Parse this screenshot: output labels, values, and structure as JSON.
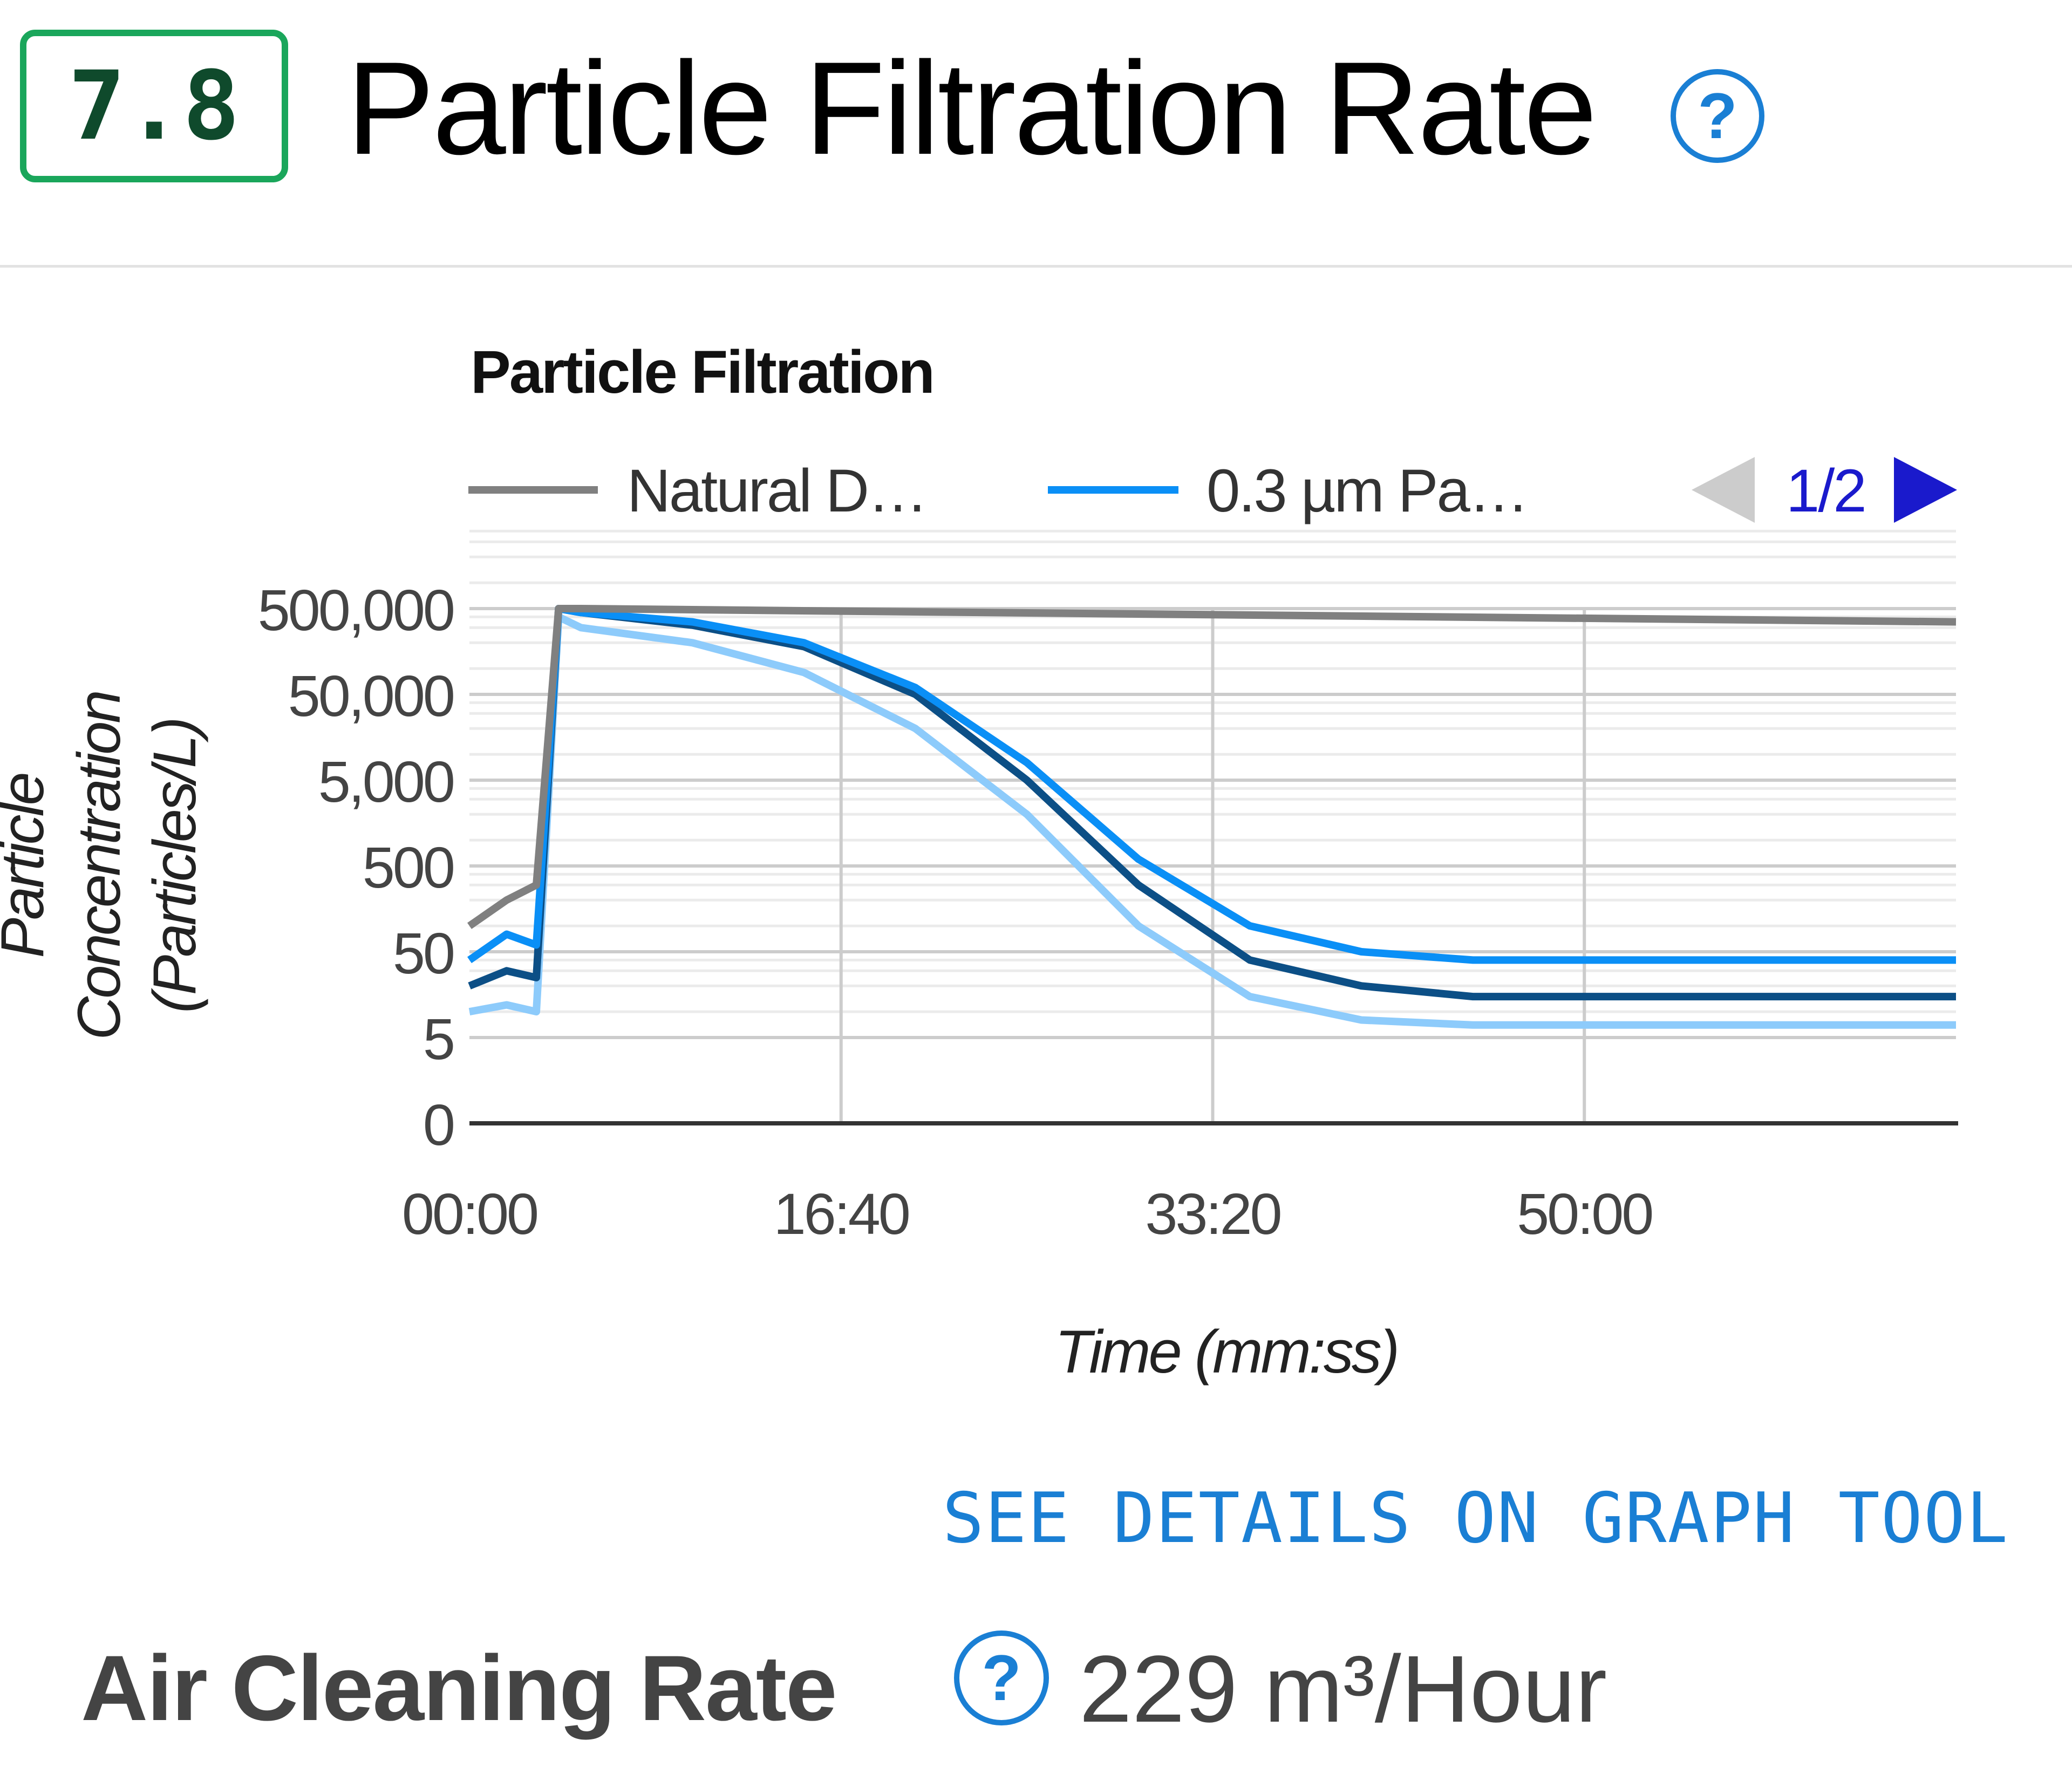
{
  "header": {
    "score": "7.8",
    "title": "Particle Filtration Rate",
    "help_glyph": "?",
    "help_icon": "question-circle-icon"
  },
  "colors": {
    "score_border": "#1aa65b",
    "score_text": "#0f4a2c",
    "accent": "#1a7fd4",
    "natural_decay": "#808080",
    "series_medium": "#0a8ff6",
    "series_dark": "#0c4f86",
    "series_light": "#8dcbfb"
  },
  "legend": {
    "page": "1/2",
    "prev_icon": "triangle-left-icon",
    "next_icon": "triangle-right-icon"
  },
  "chart_data": {
    "type": "line",
    "title": "Particle Filtration",
    "xlabel": "Time (mm:ss)",
    "ylabel": "Particle Concentration (Particles/L)",
    "y_scale": "log-like",
    "y_ticks": [
      "0",
      "5",
      "50",
      "500",
      "5,000",
      "50,000",
      "500,000"
    ],
    "x_ticks": [
      "00:00",
      "16:40",
      "33:20",
      "50:00"
    ],
    "x_range_seconds": [
      0,
      4000
    ],
    "grid": true,
    "legend_position": "top",
    "legend_entries": [
      "Natural D…",
      "0.3 µm Pa…"
    ],
    "series": [
      {
        "name": "Natural D…",
        "x": [
          0,
          100,
          180,
          240,
          300,
          4000
        ],
        "y": [
          100,
          200,
          300,
          500000,
          500000,
          350000
        ]
      },
      {
        "name": "0.3 µm Pa…",
        "x": [
          0,
          100,
          180,
          240,
          300,
          600,
          900,
          1200,
          1500,
          1800,
          2100,
          2400,
          2700,
          3000,
          3300,
          3600,
          4000
        ],
        "y": [
          40,
          80,
          60,
          500000,
          450000,
          350000,
          200000,
          60000,
          8000,
          600,
          100,
          50,
          40,
          40,
          40,
          40,
          40
        ]
      },
      {
        "x": [
          0,
          100,
          180,
          240,
          300,
          600,
          900,
          1200,
          1500,
          1800,
          2100,
          2400,
          2700,
          3000,
          3300,
          3600,
          4000
        ],
        "y": [
          20,
          30,
          25,
          500000,
          450000,
          320000,
          180000,
          50000,
          5000,
          300,
          40,
          20,
          15,
          15,
          15,
          15,
          15
        ]
      },
      {
        "x": [
          0,
          100,
          180,
          240,
          300,
          600,
          900,
          1200,
          1500,
          1800,
          2100,
          2400,
          2700,
          3000,
          3300,
          3600,
          4000
        ],
        "y": [
          10,
          12,
          10,
          400000,
          300000,
          200000,
          90000,
          20000,
          2000,
          100,
          15,
          8,
          7,
          7,
          7,
          7,
          7
        ]
      }
    ]
  },
  "link": {
    "label": "SEE DETAILS ON GRAPH TOOL"
  },
  "metric": {
    "label": "Air Cleaning Rate",
    "value": "229 m³/Hour"
  }
}
